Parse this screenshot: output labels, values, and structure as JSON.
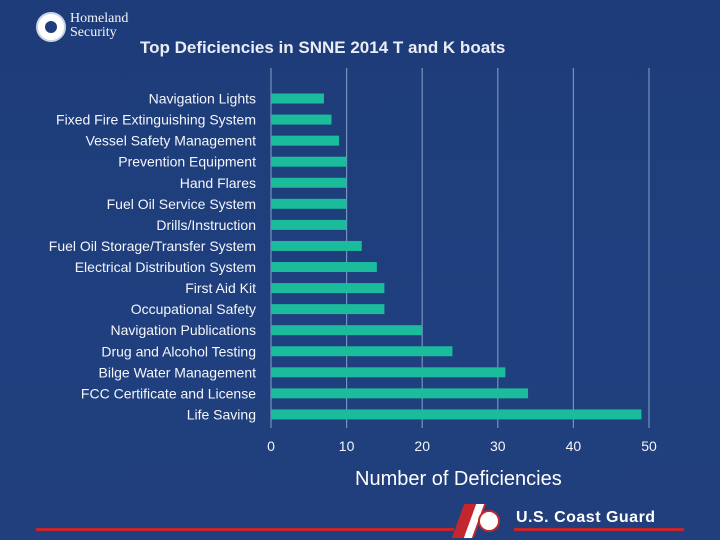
{
  "logo": {
    "line1": "Homeland",
    "line2": "Security"
  },
  "footer": {
    "brand": "U.S. Coast Guard"
  },
  "colors": {
    "background": "#1f3d7a",
    "bar": "#1abc9c",
    "grid": "#8fa5cf",
    "stripe": "#c4262e"
  },
  "chart_data": {
    "type": "bar",
    "orientation": "horizontal",
    "title": "Top Deficiencies in SNNE 2014 T and K boats",
    "xlabel": "Number of Deficiencies",
    "ylabel": "",
    "xlim": [
      0,
      50
    ],
    "xticks": [
      0,
      10,
      20,
      30,
      40,
      50
    ],
    "grid": true,
    "categories": [
      "Navigation Lights",
      "Fixed Fire Extinguishing System",
      "Vessel Safety Management",
      "Prevention Equipment",
      "Hand Flares",
      "Fuel Oil Service System",
      "Drills/Instruction",
      "Fuel Oil Storage/Transfer System",
      "Electrical Distribution System",
      "First Aid Kit",
      "Occupational Safety",
      "Navigation Publications",
      "Drug and Alcohol Testing",
      "Bilge Water Management",
      "FCC Certificate and License",
      "Life Saving"
    ],
    "values": [
      7,
      8,
      9,
      10,
      10,
      10,
      10,
      12,
      14,
      15,
      15,
      20,
      24,
      31,
      34,
      49
    ]
  }
}
